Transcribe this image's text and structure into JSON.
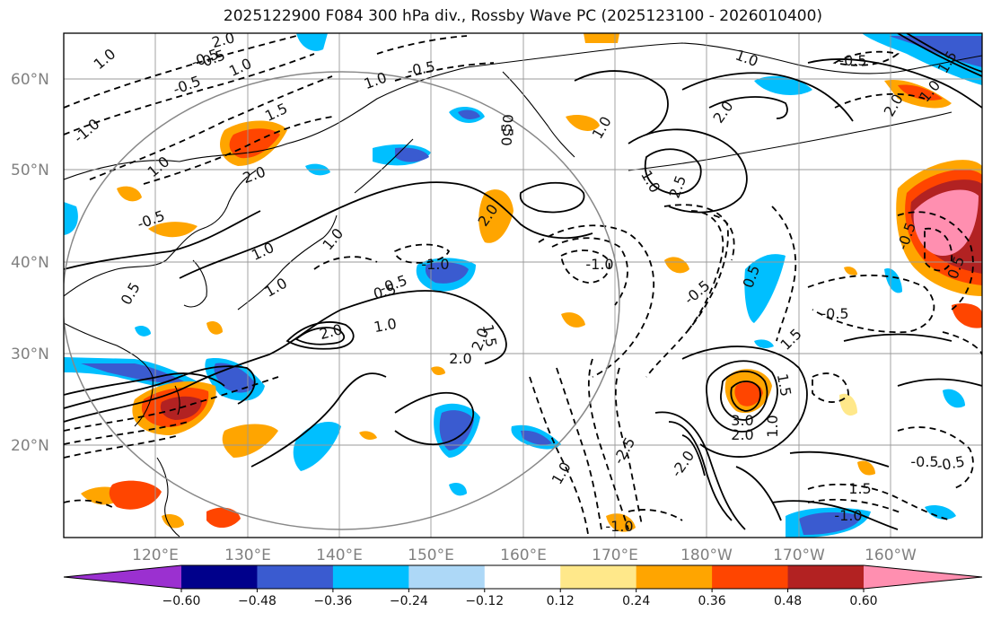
{
  "title": "2025122900 F084 300 hPa div., Rossby Wave PC (2025123100 - 2026010400)",
  "lat_labels": [
    "60°N",
    "50°N",
    "40°N",
    "30°N",
    "20°N"
  ],
  "lon_labels": [
    "120°E",
    "130°E",
    "140°E",
    "150°E",
    "160°E",
    "170°E",
    "180°W",
    "170°W",
    "160°W"
  ],
  "colorbar": {
    "ticks": [
      "−0.60",
      "−0.48",
      "−0.36",
      "−0.24",
      "−0.12",
      "0.12",
      "0.24",
      "0.36",
      "0.48",
      "0.60"
    ],
    "colors": [
      "#9b30d0",
      "#00008b",
      "#3a5bd0",
      "#00bfff",
      "#add8f7",
      "#ffffff",
      "#ffe88a",
      "#ffa500",
      "#ff4500",
      "#b22222",
      "#ff8fb0"
    ]
  },
  "contour_labels": [
    "1.0",
    "-0.5",
    "-1.0",
    "-0.5",
    "2.0",
    "1.5",
    "1.0",
    "0.5",
    "1.0",
    "-0.5",
    "1.0",
    "-0.5",
    "2.0",
    "1.0",
    "0.5",
    "1.0",
    "1.0",
    "-0.5",
    "0.5",
    "-1.0",
    "2.0",
    "2.0",
    "2.0",
    "0.5",
    "1.0",
    "1.0",
    "-1.0",
    "2.5",
    "1.0",
    "-0.5",
    "-0.5",
    "0.5",
    "2.0",
    "1.5",
    "-0.5",
    "0.5",
    "1.0",
    "2.0",
    "1.5",
    "1.0",
    "0.5",
    "-0.5",
    "3.0",
    "2.0",
    "1.0",
    "1.5",
    "-2.5",
    "-2.0",
    "-1.0",
    "-1.0",
    "-0.5",
    "1.5",
    "1.0",
    "2.0",
    "-0.5",
    "1.5"
  ],
  "colors": {
    "frame": "#000000",
    "grid": "#999999",
    "circle": "#888888",
    "contour": "#000000"
  }
}
